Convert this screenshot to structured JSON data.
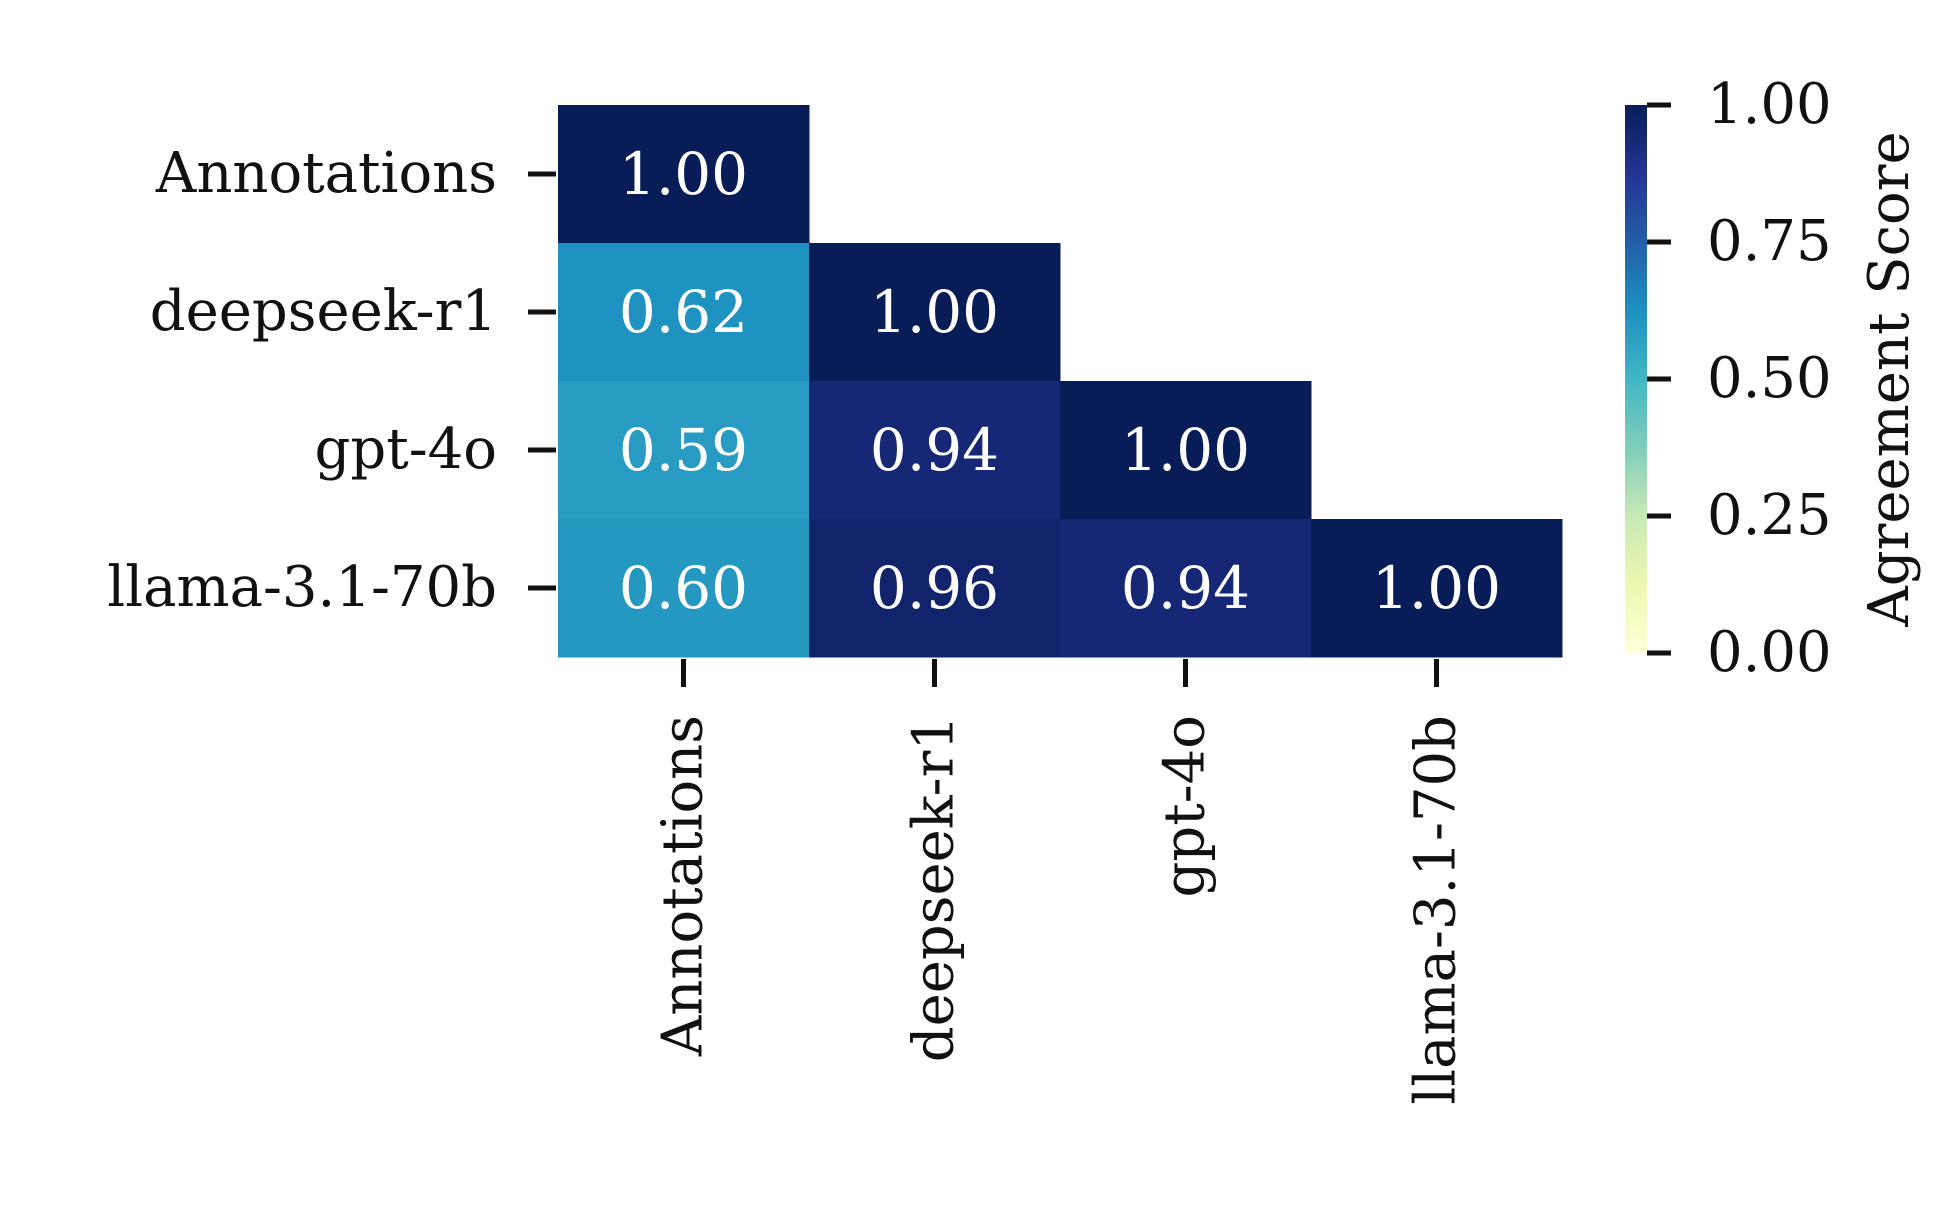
{
  "chart_data": {
    "type": "heatmap",
    "title": "",
    "rows": [
      "Annotations",
      "deepseek-r1",
      "gpt-4o",
      "llama-3.1-70b"
    ],
    "columns": [
      "Annotations",
      "deepseek-r1",
      "gpt-4o",
      "llama-3.1-70b"
    ],
    "values": [
      [
        1.0,
        null,
        null,
        null
      ],
      [
        0.62,
        1.0,
        null,
        null
      ],
      [
        0.59,
        0.94,
        1.0,
        null
      ],
      [
        0.6,
        0.96,
        0.94,
        1.0
      ]
    ],
    "value_labels": [
      [
        "1.00",
        null,
        null,
        null
      ],
      [
        "0.62",
        "1.00",
        null,
        null
      ],
      [
        "0.59",
        "0.94",
        "1.00",
        null
      ],
      [
        "0.60",
        "0.96",
        "0.94",
        "1.00"
      ]
    ],
    "mask": "upper-triangle",
    "colorbar": {
      "label": "Agreement Score",
      "range": [
        0,
        1
      ],
      "ticks": [
        0.0,
        0.25,
        0.5,
        0.75,
        1.0
      ],
      "tick_labels": [
        "0.00",
        "0.25",
        "0.50",
        "0.75",
        "1.00"
      ],
      "colormap": "YlGnBu",
      "stops": [
        "#ffffd9",
        "#edf8b1",
        "#c7e9b4",
        "#7fcdbb",
        "#41b6c4",
        "#1d91c0",
        "#225ea8",
        "#253494",
        "#081d58"
      ]
    }
  }
}
